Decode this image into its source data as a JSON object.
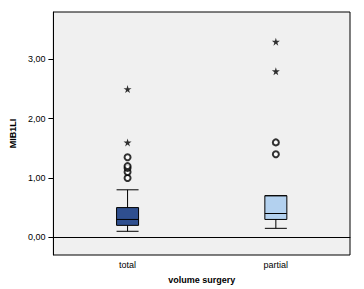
{
  "chart_data": {
    "type": "boxplot",
    "x_label": "volume surgery",
    "y_label": "MIB1LI",
    "categories": [
      "total",
      "partial"
    ],
    "boxes": [
      [
        0.1,
        0.2,
        0.3,
        0.5,
        0.8
      ],
      [
        0.15,
        0.3,
        0.4,
        0.7,
        0.7
      ]
    ],
    "outliers": [
      [
        1.0,
        1.1,
        1.17,
        1.2,
        1.35
      ],
      [
        1.4,
        1.6
      ]
    ],
    "extremes": [
      [
        1.6,
        2.5
      ],
      [
        2.8,
        3.3
      ]
    ],
    "colors": [
      "#2f4f8f",
      "#b3d1ef"
    ],
    "ylim": [
      -0.3,
      3.8
    ],
    "yticks": [
      {
        "value": 0,
        "label": "0,00"
      },
      {
        "value": 1,
        "label": "1,00"
      },
      {
        "value": 2,
        "label": "2,00"
      },
      {
        "value": 3,
        "label": "3,00"
      }
    ]
  }
}
